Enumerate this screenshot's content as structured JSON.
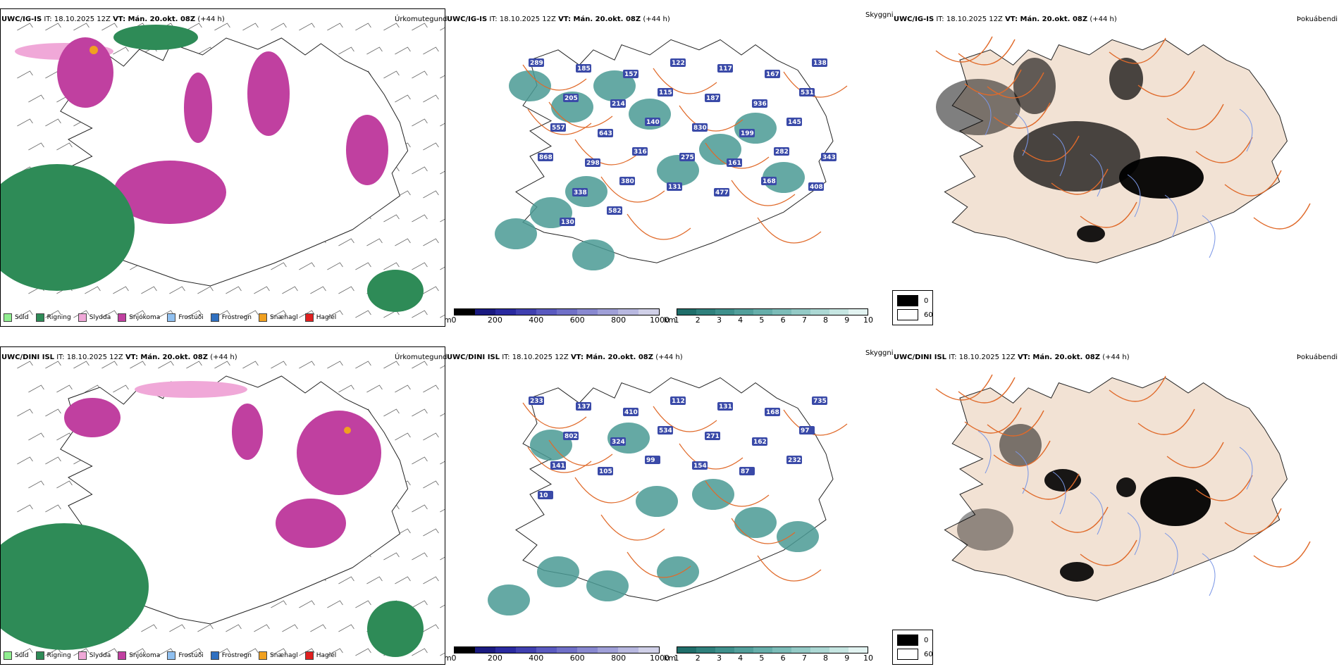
{
  "rows": [
    {
      "model": "UWC/IG-IS",
      "it_label": "IT: 18.10.2025 12Z",
      "vt_label": "VT: Mán. 20.okt. 08Z",
      "lead": "(+44 h)",
      "skyggni_labels": [
        "289",
        "185",
        "157",
        "122",
        "117",
        "167",
        "138",
        "205",
        "214",
        "115",
        "187",
        "936",
        "531",
        "557",
        "643",
        "140",
        "830",
        "199",
        "145",
        "868",
        "298",
        "316",
        "275",
        "161",
        "282",
        "343",
        "338",
        "380",
        "131",
        "477",
        "168",
        "408",
        "130",
        "582"
      ]
    },
    {
      "model": "UWC/DINI ISL",
      "it_label": "IT: 18.10.2025 12Z",
      "vt_label": "VT: Mán. 20.okt. 08Z",
      "lead": "(+44 h)",
      "skyggni_labels": [
        "233",
        "137",
        "410",
        "112",
        "131",
        "168",
        "735",
        "802",
        "324",
        "534",
        "271",
        "162",
        "97",
        "141",
        "105",
        "99",
        "154",
        "87",
        "232",
        "10"
      ]
    }
  ],
  "panel_names": {
    "precip": "Úrkomutegund",
    "visibility": "Skyggni",
    "fog": "Þokuábendi"
  },
  "precip_legend": [
    {
      "label": "Súld",
      "color": "#90ee90"
    },
    {
      "label": "Rigning",
      "color": "#2e8b57"
    },
    {
      "label": "Slydda",
      "color": "#f0a8d8"
    },
    {
      "label": "Snjókoma",
      "color": "#c040a0"
    },
    {
      "label": "Frostúði",
      "color": "#90c0f0"
    },
    {
      "label": "Frostregn",
      "color": "#3070c0"
    },
    {
      "label": "Snæhagl",
      "color": "#f0a020"
    },
    {
      "label": "Haglél",
      "color": "#e02020"
    }
  ],
  "cloud_base_colorbar": {
    "unit": "m",
    "ticks": [
      "0",
      "200",
      "400",
      "600",
      "800",
      "1000"
    ],
    "colors": [
      "#000000",
      "#1a1a80",
      "#2a2aa0",
      "#4040b0",
      "#5a5ac0",
      "#7070c8",
      "#8888d0",
      "#a0a0d8",
      "#b8b8e0",
      "#d0d0e8"
    ]
  },
  "visibility_colorbar": {
    "unit": "km",
    "ticks": [
      "1",
      "2",
      "3",
      "4",
      "5",
      "6",
      "7",
      "8",
      "9",
      "10"
    ],
    "colors": [
      "#1f6e6a",
      "#2f807c",
      "#3f908c",
      "#529f9b",
      "#66aeaa",
      "#7cbcb8",
      "#94cac6",
      "#acd8d4",
      "#c6e6e2",
      "#e2f3f1"
    ]
  },
  "fog_legend": {
    "values": [
      "0",
      "60"
    ],
    "colors": [
      "#000000",
      "#ffffff"
    ]
  },
  "map_colors": {
    "iceland_fill": "#f2e2d4",
    "road": "#e06a2a",
    "river": "#7a96e6",
    "outline": "#222222",
    "heat": "#3a4aa8",
    "teal": "#4a9a94"
  }
}
